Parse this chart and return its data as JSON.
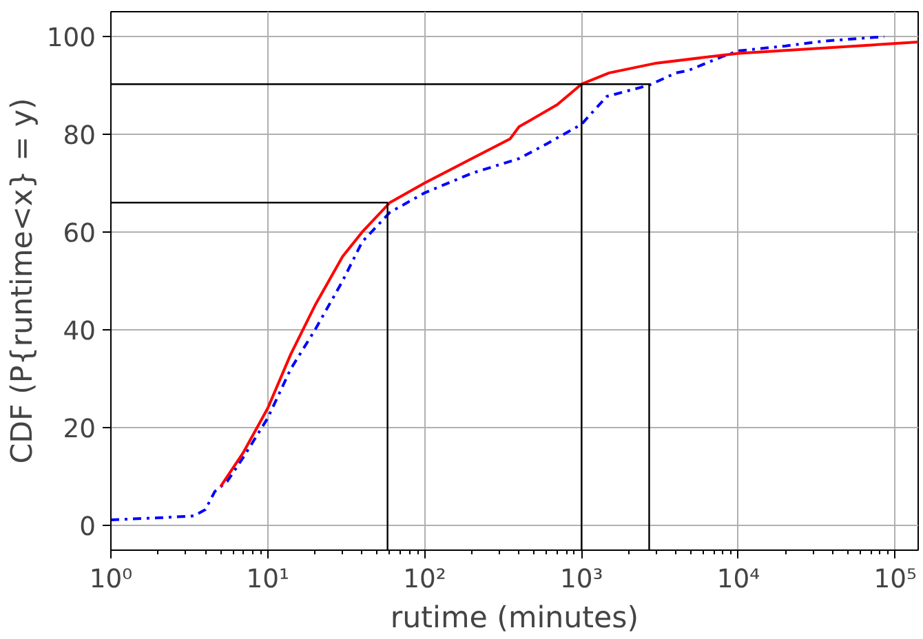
{
  "chart_data": {
    "type": "line",
    "xlabel": "rutime (minutes)",
    "ylabel": "CDF (P{runtime<x} = y)",
    "log": "x",
    "grid": true,
    "xlim": [
      1,
      140000
    ],
    "ylim": [
      -5,
      105
    ],
    "xticks": [
      {
        "value": 1,
        "label": "10⁰"
      },
      {
        "value": 10,
        "label": "10¹"
      },
      {
        "value": 100,
        "label": "10²"
      },
      {
        "value": 1000,
        "label": "10³"
      },
      {
        "value": 10000,
        "label": "10⁴"
      },
      {
        "value": 100000,
        "label": "10⁵"
      }
    ],
    "yticks": [
      0,
      20,
      40,
      60,
      80,
      100
    ],
    "series": [
      {
        "color": "#0000ff",
        "line_style": "dashdot",
        "x": [
          1,
          2,
          3.4,
          4,
          4.6,
          5.5,
          7,
          10,
          14,
          20,
          30,
          40,
          60,
          100,
          200,
          400,
          600,
          1000,
          1450,
          2700,
          4000,
          4800,
          8000,
          10000,
          20000,
          35000,
          85000
        ],
        "values": [
          1.2,
          1.6,
          2,
          3.3,
          7,
          9,
          14,
          22,
          32,
          40,
          50,
          58,
          64,
          68,
          72,
          75,
          78,
          82,
          87.7,
          90,
          92.5,
          93,
          95.9,
          97,
          98,
          99,
          99.9
        ]
      },
      {
        "color": "#ff0000",
        "line_style": "solid",
        "x": [
          5,
          7,
          10,
          14,
          20,
          30,
          40,
          60,
          100,
          200,
          350,
          400,
          700,
          1000,
          1500,
          3000,
          10000,
          140000
        ],
        "values": [
          8,
          15,
          24,
          35,
          45,
          55,
          60,
          66,
          70,
          75,
          79,
          81.5,
          86,
          90.2,
          92.5,
          94.5,
          96.5,
          98.8
        ]
      },
      {
        "color": "#000000",
        "line_style": "solid",
        "x": [
          1,
          58,
          58
        ],
        "values": [
          66,
          66,
          -5
        ]
      },
      {
        "color": "#000000",
        "line_style": "solid",
        "x": [
          1,
          2700,
          2700
        ],
        "values": [
          90.2,
          90.2,
          -5
        ]
      },
      {
        "color": "#000000",
        "line_style": "solid",
        "x": [
          1000,
          1000
        ],
        "values": [
          90.2,
          -5
        ]
      }
    ]
  }
}
